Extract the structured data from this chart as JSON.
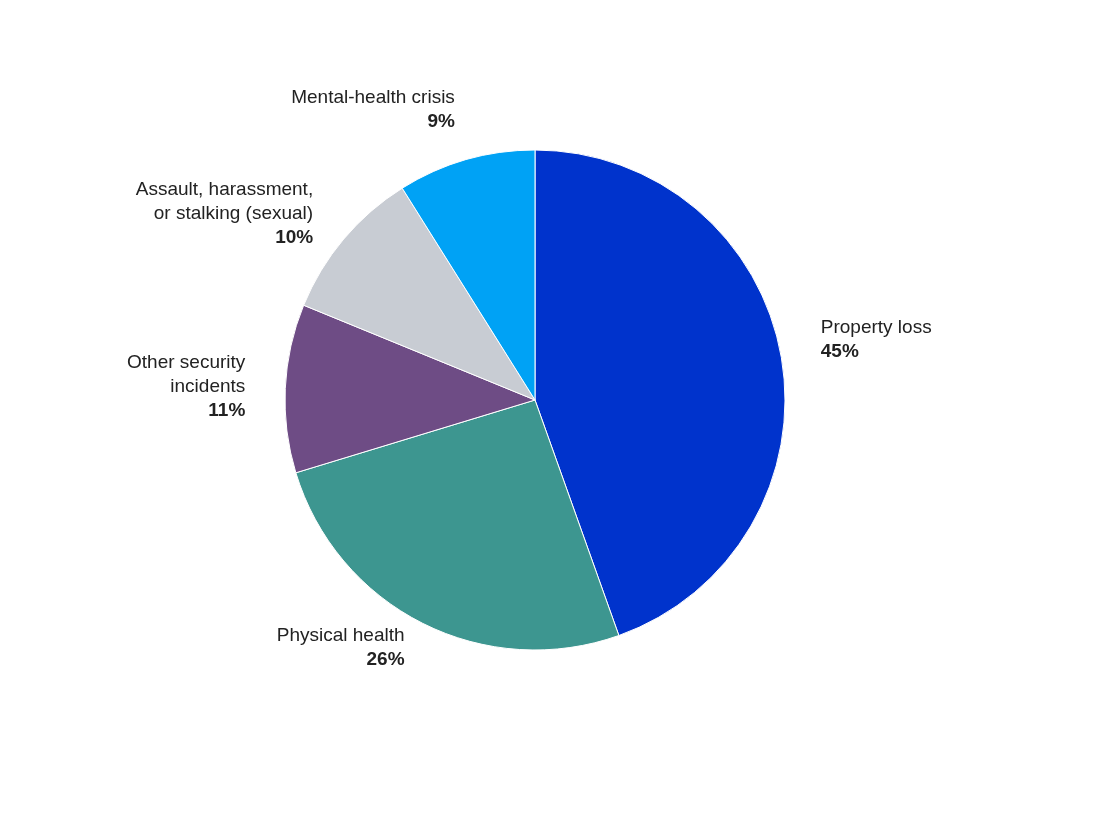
{
  "chart_data": {
    "type": "pie",
    "categories": [
      "Property loss",
      "Physical health",
      "Other security incidents",
      "Assault, harassment, or stalking (sexual)",
      "Mental-health crisis"
    ],
    "values": [
      45,
      26,
      11,
      10,
      9
    ],
    "colors": [
      "#0033cc",
      "#3d9690",
      "#6e4c85",
      "#c8ccd3",
      "#00a2f5"
    ],
    "value_labels": [
      "45%",
      "26%",
      "11%",
      "10%",
      "9%"
    ],
    "legend": false
  }
}
